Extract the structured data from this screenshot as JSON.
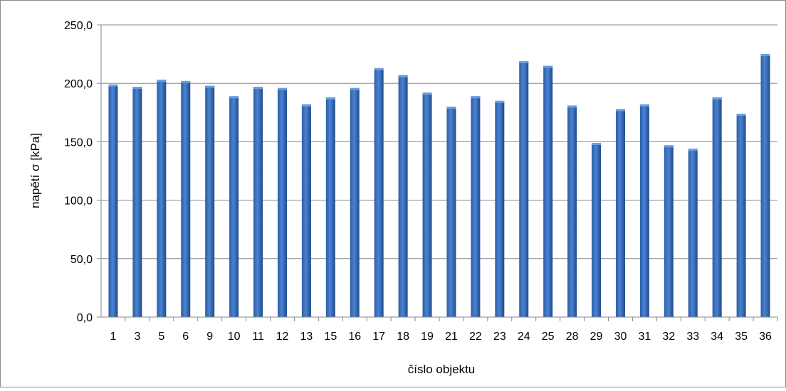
{
  "chart_data": {
    "type": "bar",
    "xlabel": "číslo objektu",
    "ylabel": "napětí σ [kPa]",
    "ylim": [
      0,
      250
    ],
    "yticks": [
      "0,0",
      "50,0",
      "100,0",
      "150,0",
      "200,0",
      "250,0"
    ],
    "grid": true,
    "categories": [
      "1",
      "3",
      "5",
      "6",
      "9",
      "10",
      "11",
      "12",
      "13",
      "15",
      "16",
      "17",
      "18",
      "19",
      "21",
      "22",
      "23",
      "24",
      "25",
      "28",
      "29",
      "30",
      "31",
      "32",
      "33",
      "34",
      "35",
      "36"
    ],
    "values": [
      199,
      197,
      203,
      202,
      198,
      189,
      197,
      196,
      182,
      188,
      196,
      213,
      207,
      192,
      180,
      189,
      185,
      219,
      215,
      181,
      149,
      178,
      182,
      147,
      144,
      188,
      174,
      225
    ],
    "colors": {
      "bar": "#3a6fbf",
      "bar_light": "#6a9ee0",
      "bar_dark": "#1f4f96",
      "grid": "#888888"
    }
  }
}
